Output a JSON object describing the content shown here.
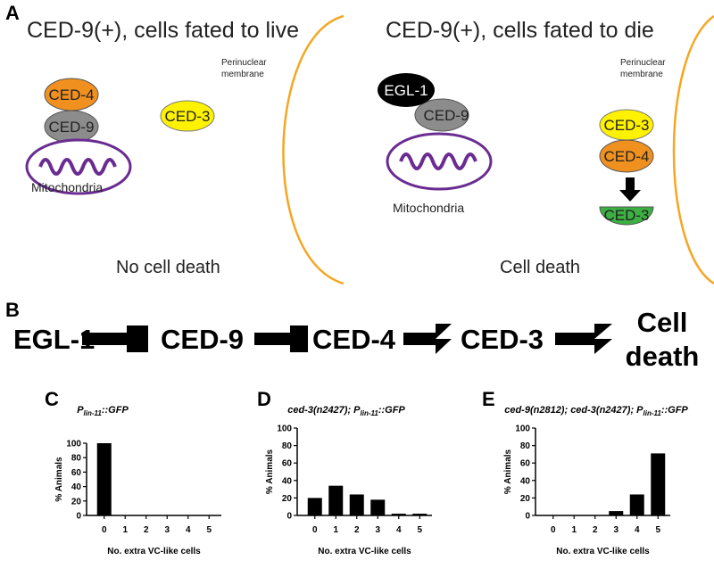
{
  "panelA": {
    "label": "A",
    "left": {
      "title": "CED-9(+), cells fated to live",
      "ced4": "CED-4",
      "ced9": "CED-9",
      "ced3": "CED-3",
      "mito": "Mitochondria",
      "membrane1": "Perinuclear",
      "membrane2": "membrane",
      "outcome": "No cell death"
    },
    "right": {
      "title": "CED-9(+), cells fated to die",
      "egl1": "EGL-1",
      "ced9": "CED-9",
      "mito": "Mitochondria",
      "membrane1": "Perinuclear",
      "membrane2": "membrane",
      "ced3": "CED-3",
      "ced4": "CED-4",
      "ced3_active": "CED-3",
      "outcome": "Cell death"
    }
  },
  "panelB": {
    "label": "B",
    "nodes": [
      "EGL-1",
      "CED-9",
      "CED-4",
      "CED-3"
    ],
    "end1": "Cell",
    "end2": "death",
    "links": [
      "inhibits",
      "inhibits",
      "activates",
      "activates"
    ]
  },
  "colors": {
    "ced4": "#f0911f",
    "ced9": "#8c8c8c",
    "ced3": "#fff200",
    "ced3_active": "#3cb043",
    "egl1": "#000000",
    "mito": "#6a2c91",
    "membrane": "#f5a623"
  },
  "chart_data": [
    {
      "panel": "C",
      "type": "bar",
      "title_main": "P",
      "title_sub": "lin-11",
      "title_rest": "::GFP",
      "categories": [
        "0",
        "1",
        "2",
        "3",
        "4",
        "5"
      ],
      "values": [
        100,
        0,
        0,
        0,
        0,
        0
      ],
      "xlabel": "No. extra VC-like cells",
      "ylabel": "% Animals",
      "ylim": [
        0,
        100
      ],
      "yticks": [
        "0",
        "20",
        "40",
        "60",
        "80",
        "100"
      ]
    },
    {
      "panel": "D",
      "type": "bar",
      "title_main": "ced-3(n2427); P",
      "title_sub": "lin-11",
      "title_rest": "::GFP",
      "categories": [
        "0",
        "1",
        "2",
        "3",
        "4",
        "5"
      ],
      "values": [
        20,
        34,
        24,
        18,
        2,
        2
      ],
      "xlabel": "No. extra VC-like cells",
      "ylabel": "% Animals",
      "ylim": [
        0,
        100
      ],
      "yticks": [
        "0",
        "20",
        "40",
        "60",
        "80",
        "100"
      ]
    },
    {
      "panel": "E",
      "type": "bar",
      "title_main": "ced-9(n2812); ced-3(n2427); P",
      "title_sub": "lin-11",
      "title_rest": "::GFP",
      "categories": [
        "0",
        "1",
        "2",
        "3",
        "4",
        "5"
      ],
      "values": [
        0,
        0,
        0,
        5,
        24,
        71
      ],
      "xlabel": "No. extra VC-like cells",
      "ylabel": "% Animals",
      "ylim": [
        0,
        100
      ],
      "yticks": [
        "0",
        "20",
        "40",
        "60",
        "80",
        "100"
      ]
    }
  ]
}
